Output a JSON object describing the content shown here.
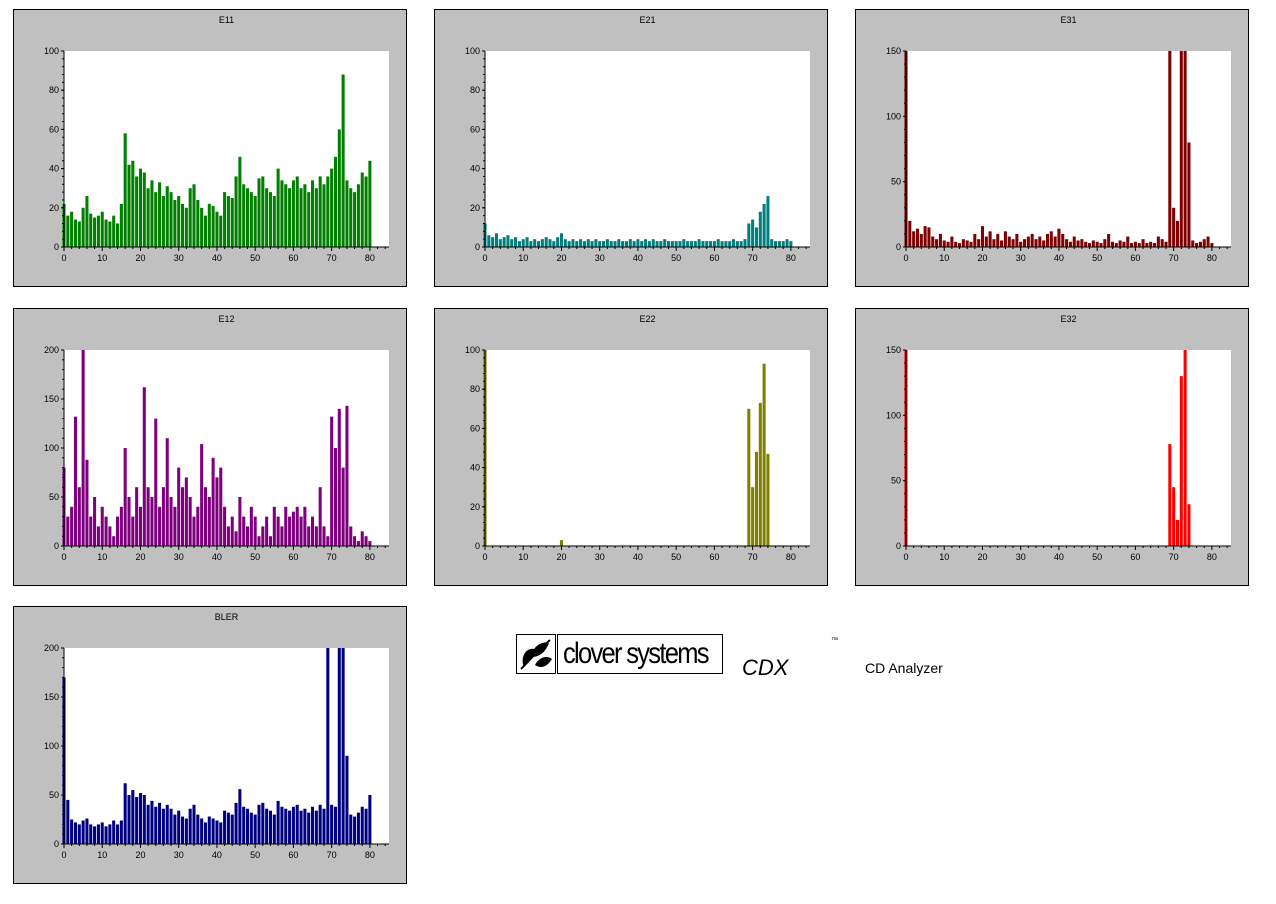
{
  "branding": {
    "wordmark": "clover systems",
    "product": "CDX",
    "trademark": "™",
    "subtitle": "CD Analyzer"
  },
  "chart_data": [
    {
      "type": "bar",
      "title": "E11",
      "color": "#007f00",
      "x_range": [
        0,
        85
      ],
      "xticks": [
        0,
        10,
        20,
        30,
        40,
        50,
        60,
        70,
        80
      ],
      "ylim": [
        0,
        100
      ],
      "yticks": [
        0,
        20,
        40,
        60,
        80,
        100
      ],
      "x": [
        0,
        1,
        2,
        3,
        4,
        5,
        6,
        7,
        8,
        9,
        10,
        11,
        12,
        13,
        14,
        15,
        16,
        17,
        18,
        19,
        20,
        21,
        22,
        23,
        24,
        25,
        26,
        27,
        28,
        29,
        30,
        31,
        32,
        33,
        34,
        35,
        36,
        37,
        38,
        39,
        40,
        41,
        42,
        43,
        44,
        45,
        46,
        47,
        48,
        49,
        50,
        51,
        52,
        53,
        54,
        55,
        56,
        57,
        58,
        59,
        60,
        61,
        62,
        63,
        64,
        65,
        66,
        67,
        68,
        69,
        70,
        71,
        72,
        73,
        74,
        75,
        76,
        77,
        78,
        79,
        80
      ],
      "values": [
        22,
        16,
        18,
        14,
        13,
        20,
        26,
        17,
        15,
        16,
        18,
        14,
        13,
        16,
        12,
        22,
        58,
        42,
        44,
        36,
        40,
        38,
        30,
        34,
        28,
        33,
        26,
        31,
        28,
        24,
        26,
        22,
        20,
        30,
        32,
        24,
        20,
        16,
        22,
        21,
        18,
        16,
        28,
        26,
        25,
        36,
        46,
        32,
        30,
        28,
        26,
        35,
        36,
        30,
        28,
        26,
        40,
        34,
        32,
        30,
        34,
        36,
        30,
        32,
        28,
        34,
        30,
        36,
        32,
        36,
        40,
        46,
        60,
        88,
        34,
        30,
        28,
        32,
        38,
        36,
        44
      ]
    },
    {
      "type": "bar",
      "title": "E21",
      "color": "#007f7f",
      "x_range": [
        0,
        85
      ],
      "xticks": [
        0,
        10,
        20,
        30,
        40,
        50,
        60,
        70,
        80
      ],
      "ylim": [
        0,
        100
      ],
      "yticks": [
        0,
        20,
        40,
        60,
        80,
        100
      ],
      "x": [
        0,
        1,
        2,
        3,
        4,
        5,
        6,
        7,
        8,
        9,
        10,
        11,
        12,
        13,
        14,
        15,
        16,
        17,
        18,
        19,
        20,
        21,
        22,
        23,
        24,
        25,
        26,
        27,
        28,
        29,
        30,
        31,
        32,
        33,
        34,
        35,
        36,
        37,
        38,
        39,
        40,
        41,
        42,
        43,
        44,
        45,
        46,
        47,
        48,
        49,
        50,
        51,
        52,
        53,
        54,
        55,
        56,
        57,
        58,
        59,
        60,
        61,
        62,
        63,
        64,
        65,
        66,
        67,
        68,
        69,
        70,
        71,
        72,
        73,
        74,
        75,
        76,
        77,
        78,
        79,
        80
      ],
      "values": [
        12,
        6,
        5,
        7,
        4,
        5,
        6,
        4,
        5,
        3,
        4,
        5,
        3,
        4,
        3,
        4,
        5,
        4,
        3,
        5,
        7,
        4,
        3,
        4,
        3,
        4,
        3,
        4,
        3,
        4,
        3,
        3,
        4,
        3,
        3,
        4,
        3,
        3,
        4,
        3,
        4,
        3,
        4,
        3,
        4,
        3,
        3,
        4,
        3,
        3,
        3,
        3,
        4,
        3,
        3,
        3,
        4,
        3,
        3,
        3,
        3,
        4,
        3,
        3,
        3,
        4,
        3,
        3,
        4,
        12,
        14,
        10,
        18,
        22,
        26,
        4,
        3,
        3,
        3,
        4,
        3
      ]
    },
    {
      "type": "bar",
      "title": "E31",
      "color": "#7f0000",
      "x_range": [
        0,
        85
      ],
      "xticks": [
        0,
        10,
        20,
        30,
        40,
        50,
        60,
        70,
        80
      ],
      "ylim": [
        0,
        150
      ],
      "yticks": [
        0,
        50,
        100,
        150
      ],
      "x": [
        0,
        1,
        2,
        3,
        4,
        5,
        6,
        7,
        8,
        9,
        10,
        11,
        12,
        13,
        14,
        15,
        16,
        17,
        18,
        19,
        20,
        21,
        22,
        23,
        24,
        25,
        26,
        27,
        28,
        29,
        30,
        31,
        32,
        33,
        34,
        35,
        36,
        37,
        38,
        39,
        40,
        41,
        42,
        43,
        44,
        45,
        46,
        47,
        48,
        49,
        50,
        51,
        52,
        53,
        54,
        55,
        56,
        57,
        58,
        59,
        60,
        61,
        62,
        63,
        64,
        65,
        66,
        67,
        68,
        69,
        70,
        71,
        72,
        73,
        74,
        75,
        76,
        77,
        78,
        79,
        80
      ],
      "values": [
        150,
        20,
        12,
        14,
        10,
        16,
        15,
        8,
        6,
        10,
        5,
        4,
        8,
        4,
        3,
        6,
        5,
        4,
        10,
        6,
        16,
        8,
        12,
        6,
        10,
        5,
        12,
        8,
        6,
        10,
        4,
        6,
        8,
        10,
        6,
        8,
        5,
        10,
        12,
        8,
        14,
        10,
        6,
        4,
        8,
        5,
        6,
        4,
        3,
        5,
        4,
        3,
        6,
        10,
        4,
        3,
        5,
        4,
        8,
        3,
        4,
        3,
        6,
        3,
        4,
        3,
        8,
        6,
        4,
        150,
        30,
        20,
        150,
        150,
        80,
        5,
        3,
        4,
        6,
        8,
        3
      ]
    },
    {
      "type": "bar",
      "title": "E12",
      "color": "#7f007f",
      "x_range": [
        0,
        85
      ],
      "xticks": [
        0,
        10,
        20,
        30,
        40,
        50,
        60,
        70,
        80
      ],
      "ylim": [
        0,
        200
      ],
      "yticks": [
        0,
        50,
        100,
        150,
        200
      ],
      "x": [
        0,
        1,
        2,
        3,
        4,
        5,
        6,
        7,
        8,
        9,
        10,
        11,
        12,
        13,
        14,
        15,
        16,
        17,
        18,
        19,
        20,
        21,
        22,
        23,
        24,
        25,
        26,
        27,
        28,
        29,
        30,
        31,
        32,
        33,
        34,
        35,
        36,
        37,
        38,
        39,
        40,
        41,
        42,
        43,
        44,
        45,
        46,
        47,
        48,
        49,
        50,
        51,
        52,
        53,
        54,
        55,
        56,
        57,
        58,
        59,
        60,
        61,
        62,
        63,
        64,
        65,
        66,
        67,
        68,
        69,
        70,
        71,
        72,
        73,
        74,
        75,
        76,
        77,
        78,
        79,
        80
      ],
      "values": [
        80,
        30,
        40,
        132,
        60,
        200,
        88,
        30,
        50,
        20,
        40,
        30,
        20,
        10,
        30,
        40,
        100,
        50,
        30,
        60,
        40,
        162,
        60,
        50,
        130,
        40,
        60,
        110,
        50,
        40,
        80,
        60,
        70,
        50,
        30,
        40,
        104,
        60,
        50,
        90,
        70,
        80,
        40,
        20,
        30,
        15,
        50,
        30,
        20,
        40,
        30,
        10,
        20,
        30,
        10,
        40,
        30,
        20,
        40,
        30,
        35,
        40,
        30,
        40,
        20,
        30,
        20,
        60,
        20,
        10,
        132,
        100,
        140,
        80,
        143,
        20,
        10,
        5,
        15,
        10,
        5
      ]
    },
    {
      "type": "bar",
      "title": "E22",
      "color": "#7f7f00",
      "x_range": [
        0,
        85
      ],
      "xticks": [
        0,
        10,
        20,
        30,
        40,
        50,
        60,
        70,
        80
      ],
      "ylim": [
        0,
        100
      ],
      "yticks": [
        0,
        20,
        40,
        60,
        80,
        100
      ],
      "x": [
        0,
        1,
        2,
        3,
        4,
        5,
        6,
        7,
        8,
        9,
        10,
        11,
        12,
        13,
        14,
        15,
        16,
        17,
        18,
        19,
        20,
        21,
        22,
        23,
        24,
        25,
        26,
        27,
        28,
        29,
        30,
        31,
        32,
        33,
        34,
        35,
        36,
        37,
        38,
        39,
        40,
        41,
        42,
        43,
        44,
        45,
        46,
        47,
        48,
        49,
        50,
        51,
        52,
        53,
        54,
        55,
        56,
        57,
        58,
        59,
        60,
        61,
        62,
        63,
        64,
        65,
        66,
        67,
        68,
        69,
        70,
        71,
        72,
        73,
        74,
        75,
        76,
        77,
        78,
        79,
        80
      ],
      "values": [
        100,
        0,
        0,
        0,
        0,
        0,
        0,
        0,
        0,
        0,
        0,
        0,
        0,
        0,
        0,
        0,
        0,
        0,
        0,
        0,
        3,
        0,
        0,
        0,
        0,
        0,
        0,
        0,
        0,
        0,
        0,
        0,
        0,
        0,
        0,
        0,
        0,
        0,
        0,
        0,
        0,
        0,
        0,
        0,
        0,
        0,
        0,
        0,
        0,
        0,
        0,
        0,
        0,
        0,
        0,
        0,
        0,
        0,
        0,
        0,
        0,
        0,
        0,
        0,
        0,
        0,
        0,
        0,
        0,
        70,
        30,
        48,
        73,
        93,
        47,
        0,
        0,
        0,
        0,
        0,
        0
      ]
    },
    {
      "type": "bar",
      "title": "E32",
      "color": "#ff0000",
      "x_range": [
        0,
        85
      ],
      "xticks": [
        0,
        10,
        20,
        30,
        40,
        50,
        60,
        70,
        80
      ],
      "ylim": [
        0,
        150
      ],
      "yticks": [
        0,
        50,
        100,
        150
      ],
      "x": [
        0,
        1,
        2,
        3,
        4,
        5,
        6,
        7,
        8,
        9,
        10,
        11,
        12,
        13,
        14,
        15,
        16,
        17,
        18,
        19,
        20,
        21,
        22,
        23,
        24,
        25,
        26,
        27,
        28,
        29,
        30,
        31,
        32,
        33,
        34,
        35,
        36,
        37,
        38,
        39,
        40,
        41,
        42,
        43,
        44,
        45,
        46,
        47,
        48,
        49,
        50,
        51,
        52,
        53,
        54,
        55,
        56,
        57,
        58,
        59,
        60,
        61,
        62,
        63,
        64,
        65,
        66,
        67,
        68,
        69,
        70,
        71,
        72,
        73,
        74,
        75,
        76,
        77,
        78,
        79,
        80
      ],
      "values": [
        150,
        0,
        0,
        0,
        0,
        0,
        0,
        0,
        0,
        0,
        0,
        0,
        0,
        0,
        0,
        0,
        0,
        0,
        0,
        0,
        0,
        0,
        0,
        0,
        0,
        0,
        0,
        0,
        0,
        0,
        0,
        0,
        0,
        0,
        0,
        0,
        0,
        0,
        0,
        0,
        0,
        0,
        0,
        0,
        0,
        0,
        0,
        0,
        0,
        0,
        0,
        0,
        0,
        0,
        0,
        0,
        0,
        0,
        0,
        0,
        0,
        0,
        0,
        0,
        0,
        0,
        0,
        0,
        0,
        78,
        45,
        20,
        130,
        150,
        32,
        0,
        0,
        0,
        0,
        0,
        0
      ]
    },
    {
      "type": "bar",
      "title": "BLER",
      "color": "#000080",
      "x_range": [
        0,
        85
      ],
      "xticks": [
        0,
        10,
        20,
        30,
        40,
        50,
        60,
        70,
        80
      ],
      "ylim": [
        0,
        200
      ],
      "yticks": [
        0,
        50,
        100,
        150,
        200
      ],
      "x": [
        0,
        1,
        2,
        3,
        4,
        5,
        6,
        7,
        8,
        9,
        10,
        11,
        12,
        13,
        14,
        15,
        16,
        17,
        18,
        19,
        20,
        21,
        22,
        23,
        24,
        25,
        26,
        27,
        28,
        29,
        30,
        31,
        32,
        33,
        34,
        35,
        36,
        37,
        38,
        39,
        40,
        41,
        42,
        43,
        44,
        45,
        46,
        47,
        48,
        49,
        50,
        51,
        52,
        53,
        54,
        55,
        56,
        57,
        58,
        59,
        60,
        61,
        62,
        63,
        64,
        65,
        66,
        67,
        68,
        69,
        70,
        71,
        72,
        73,
        74,
        75,
        76,
        77,
        78,
        79,
        80
      ],
      "values": [
        170,
        45,
        25,
        22,
        20,
        24,
        26,
        20,
        18,
        20,
        22,
        18,
        20,
        24,
        20,
        24,
        62,
        50,
        55,
        48,
        52,
        50,
        40,
        44,
        38,
        42,
        36,
        40,
        36,
        30,
        34,
        28,
        26,
        36,
        40,
        30,
        26,
        22,
        28,
        26,
        24,
        22,
        34,
        32,
        30,
        42,
        56,
        38,
        36,
        32,
        30,
        40,
        42,
        36,
        34,
        30,
        44,
        38,
        36,
        34,
        38,
        40,
        34,
        36,
        32,
        38,
        34,
        40,
        36,
        200,
        40,
        38,
        200,
        200,
        90,
        30,
        28,
        32,
        38,
        36,
        50
      ]
    }
  ]
}
